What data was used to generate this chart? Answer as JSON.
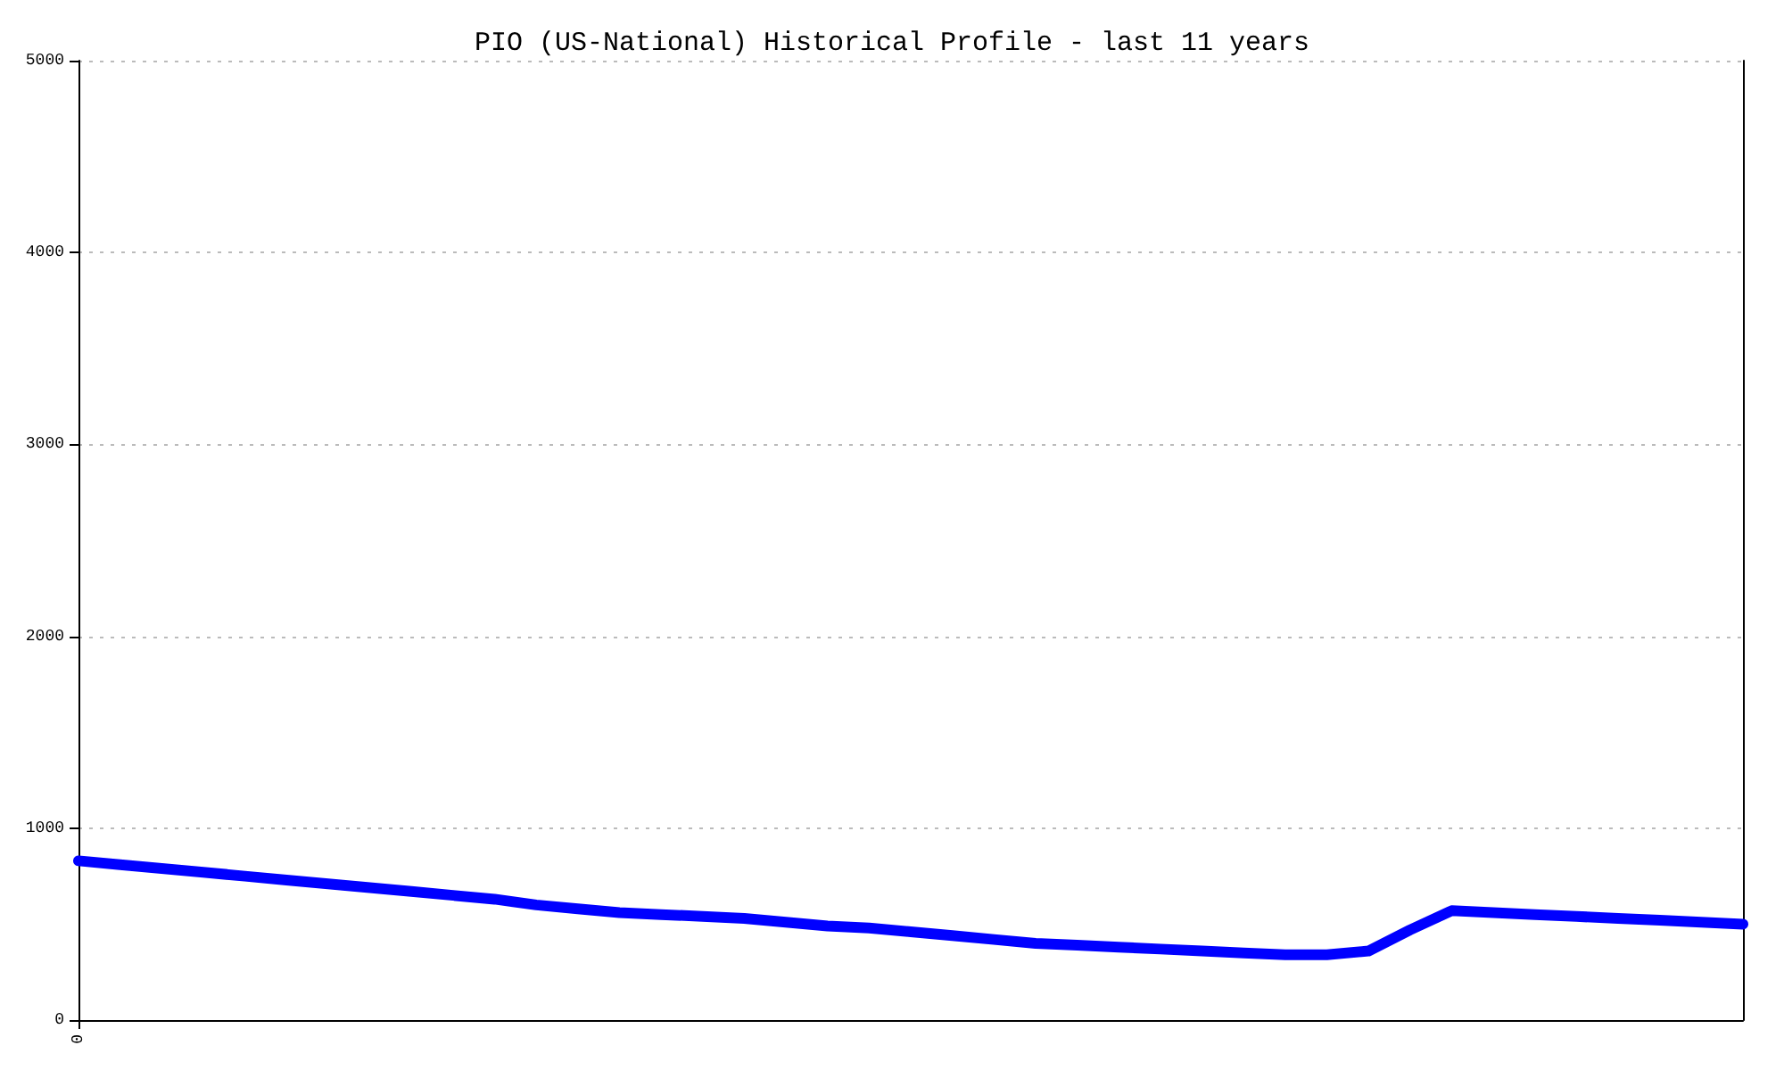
{
  "chart_data": {
    "type": "line",
    "title": "PIO (US-National) Historical Profile - last 11 years",
    "categories": [
      "0",
      null,
      null,
      null,
      null,
      null,
      null,
      null,
      null,
      null,
      null,
      null,
      null,
      null,
      null,
      null,
      null,
      null,
      null,
      null,
      null,
      null,
      null,
      null,
      null,
      null,
      null,
      null,
      null,
      null,
      null,
      null,
      null,
      null,
      null,
      null,
      null,
      null,
      null,
      null,
      null
    ],
    "series": [
      {
        "color": "#0000ff",
        "values": [
          830,
          810,
          790,
          770,
          750,
          730,
          710,
          690,
          670,
          650,
          630,
          600,
          580,
          560,
          550,
          540,
          530,
          510,
          490,
          480,
          460,
          440,
          420,
          400,
          390,
          380,
          370,
          360,
          350,
          340,
          340,
          360,
          470,
          570,
          560,
          550,
          540,
          530,
          520,
          510,
          500
        ]
      }
    ],
    "ylim": [
      0,
      5000
    ],
    "yticks": [
      0,
      1000,
      2000,
      3000,
      4000,
      5000
    ],
    "grid": "y",
    "marker": "none",
    "line_style": "solid"
  }
}
